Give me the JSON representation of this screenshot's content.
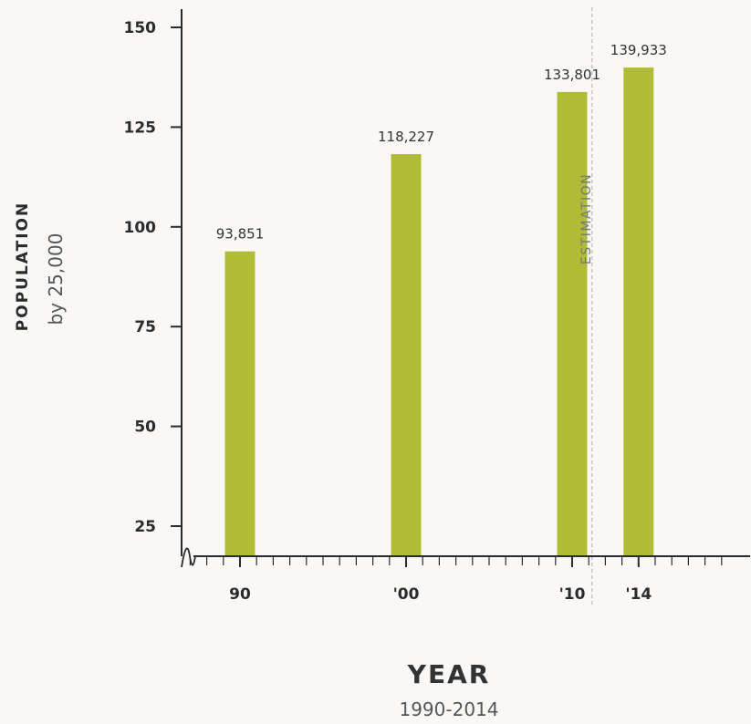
{
  "chart_data": {
    "type": "bar",
    "categories": [
      "90",
      "'00",
      "'10",
      "'14"
    ],
    "values": [
      93.851,
      118.227,
      133.801,
      139.933
    ],
    "data_labels": [
      "93,851",
      "118,227",
      "133,801",
      "139,933"
    ],
    "ylabel": "POPULATION",
    "ylabel_sub": "by 25,000",
    "xlabel": "YEAR",
    "xlabel_sub": "1990-2014",
    "yticks": [
      25,
      50,
      75,
      100,
      125,
      150
    ],
    "ylim": [
      17,
      154
    ],
    "x_range": [
      1984,
      2020
    ],
    "bar_years": [
      1990,
      2000,
      2010,
      2014
    ],
    "annotation": "ESTIMATION",
    "annotation_year": 2011.2,
    "grid": false,
    "axis_break": true
  },
  "colors": {
    "bar": "#b1bc36",
    "axis": "#2b2b2b",
    "annotation_line": "#aaaaaa",
    "background": "#f9f8f6"
  }
}
